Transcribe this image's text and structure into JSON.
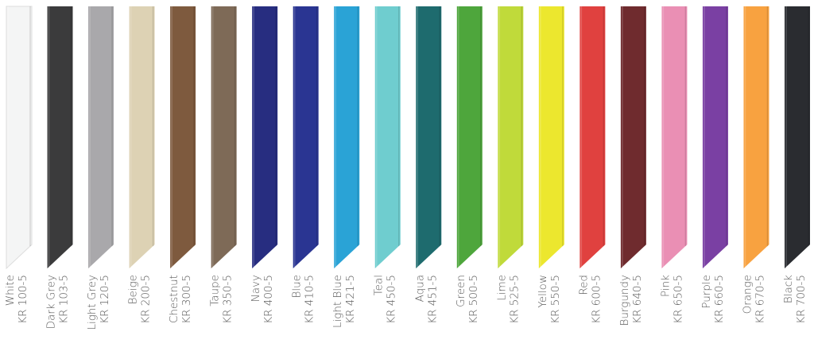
{
  "swatches": [
    {
      "name": "White",
      "code": "KR 100-5",
      "color": "#f4f5f5"
    },
    {
      "name": "Dark Grey",
      "code": "KR 103-5",
      "color": "#3b3b3c"
    },
    {
      "name": "Light Grey",
      "code": "KR 120-5",
      "color": "#a9a8ab"
    },
    {
      "name": "Beige",
      "code": "KR 200-5",
      "color": "#ddd2b4"
    },
    {
      "name": "Chestnut",
      "code": "KR 300-5",
      "color": "#7e5a3e"
    },
    {
      "name": "Taupe",
      "code": "KR 350-5",
      "color": "#7e6a57"
    },
    {
      "name": "Navy",
      "code": "KR 400-5",
      "color": "#272d80"
    },
    {
      "name": "Blue",
      "code": "KR 410-5",
      "color": "#2a3592"
    },
    {
      "name": "Light Blue",
      "code": "KR 421-5",
      "color": "#2aa3d6"
    },
    {
      "name": "Teal",
      "code": "KR 450-5",
      "color": "#6fcdcf"
    },
    {
      "name": "Aqua",
      "code": "KR 451-5",
      "color": "#1e6b6e"
    },
    {
      "name": "Green",
      "code": "KR 500-5",
      "color": "#4ea63c"
    },
    {
      "name": "Lime",
      "code": "KR 525-5",
      "color": "#c0da3a"
    },
    {
      "name": "Yellow",
      "code": "KR 550-5",
      "color": "#ece72e"
    },
    {
      "name": "Red",
      "code": "KR 600-5",
      "color": "#e0413f"
    },
    {
      "name": "Burgundy",
      "code": "KR 640-5",
      "color": "#6f2b2e"
    },
    {
      "name": "Pink",
      "code": "KR 650-5",
      "color": "#ea8fb4"
    },
    {
      "name": "Purple",
      "code": "KR 660-5",
      "color": "#7a40a3"
    },
    {
      "name": "Orange",
      "code": "KR 670-5",
      "color": "#f8a240"
    },
    {
      "name": "Black",
      "code": "KR 700-5",
      "color": "#2a2c30"
    }
  ]
}
